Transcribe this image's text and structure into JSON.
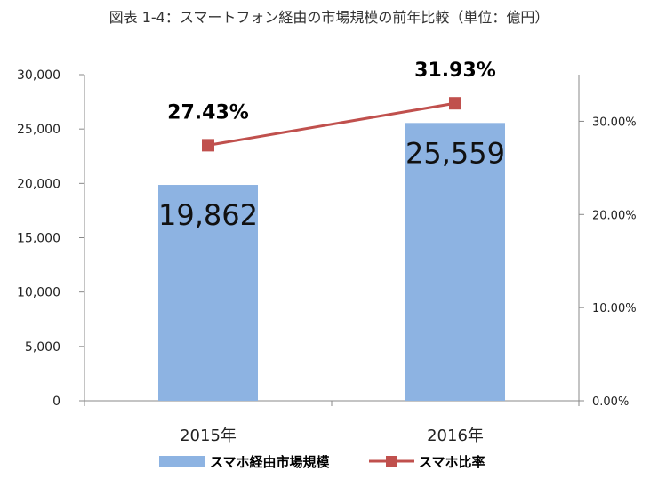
{
  "title": "図表 1-4：スマートフォン経由の市場規模の前年比較（単位：億円）",
  "chart_data": {
    "type": "bar",
    "categories": [
      "2015年",
      "2016年"
    ],
    "series": [
      {
        "name": "スマホ経由市場規模",
        "axis": "left",
        "type": "bar",
        "color": "#8db3e2",
        "values": [
          19862,
          25559
        ],
        "labels": [
          "19,862",
          "25,559"
        ]
      },
      {
        "name": "スマホ比率",
        "axis": "right",
        "type": "line",
        "color": "#c0504d",
        "values": [
          27.43,
          31.93
        ],
        "labels": [
          "27.43%",
          "31.93%"
        ]
      }
    ],
    "left_axis": {
      "min": 0,
      "max": 30000,
      "ticks": [
        0,
        5000,
        10000,
        15000,
        20000,
        25000,
        30000
      ],
      "tick_labels": [
        "0",
        "5,000",
        "10,000",
        "15,000",
        "20,000",
        "25,000",
        "30,000"
      ]
    },
    "right_axis": {
      "min": 0,
      "max": 35,
      "ticks": [
        0,
        10,
        20,
        30
      ],
      "tick_labels": [
        "0.00%",
        "10.00%",
        "20.00%",
        "30.00%"
      ]
    },
    "legend": "bottom",
    "grid": false
  }
}
